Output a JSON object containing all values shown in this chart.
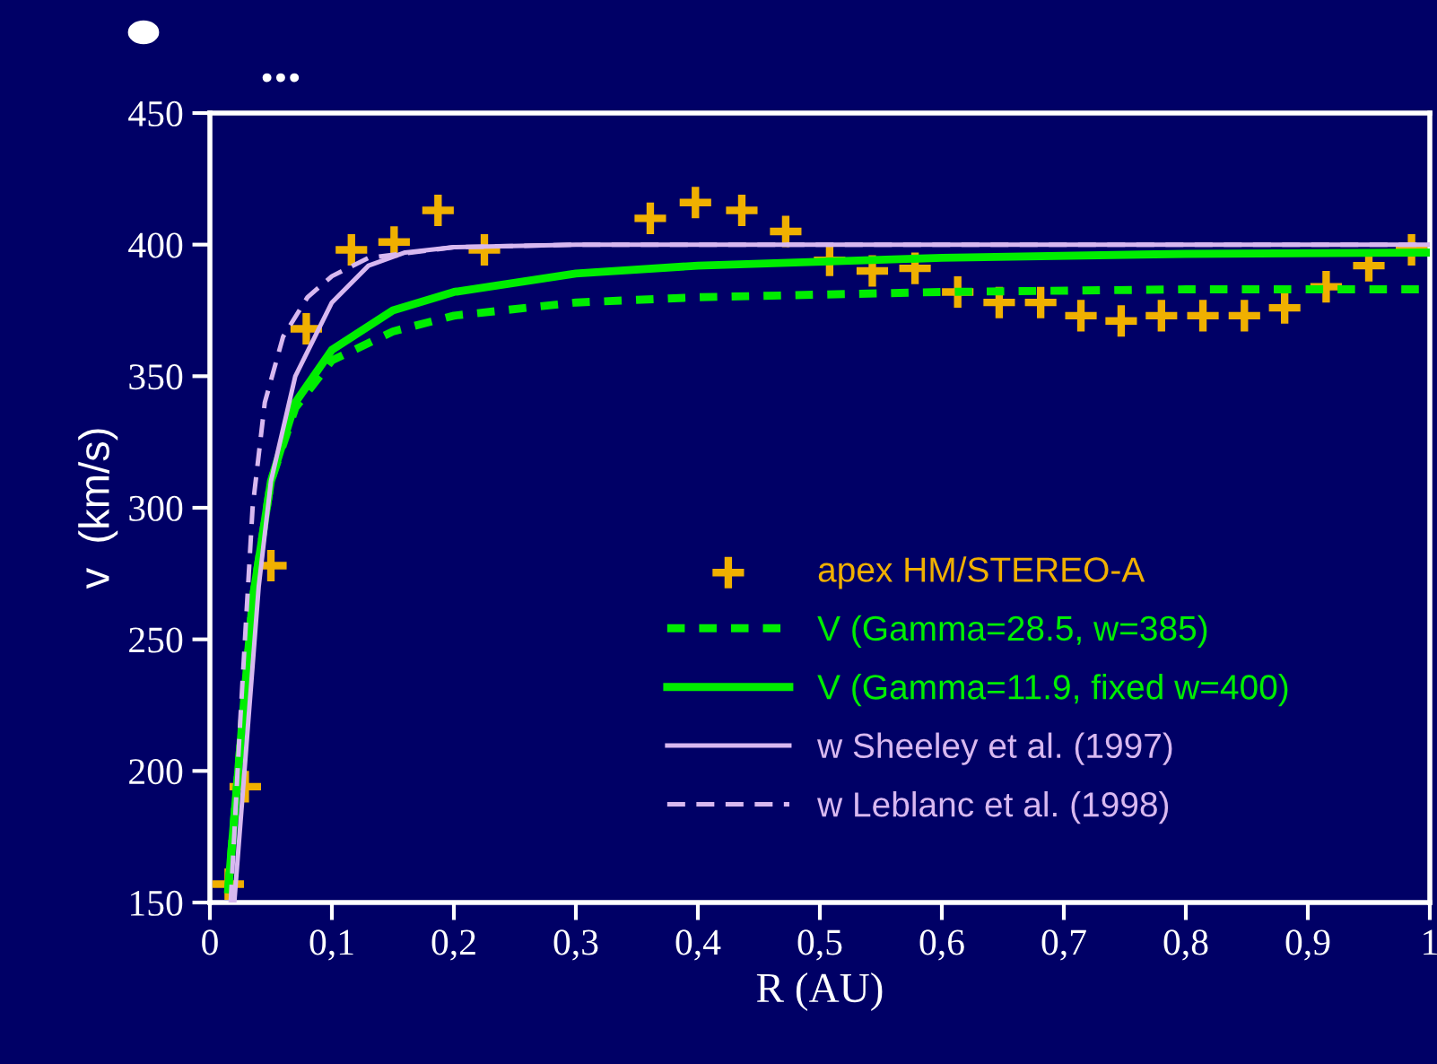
{
  "chart_data": {
    "type": "line",
    "title": "...",
    "xlabel": "R (AU)",
    "ylabel": "v  (km/s)",
    "xlim": [
      0,
      1
    ],
    "ylim": [
      150,
      450
    ],
    "xticks": [
      0,
      {
        "value": 0.1,
        "label": "0,1"
      },
      {
        "value": 0.2,
        "label": "0,2"
      },
      {
        "value": 0.3,
        "label": "0,3"
      },
      {
        "value": 0.4,
        "label": "0,4"
      },
      {
        "value": 0.5,
        "label": "0,5"
      },
      {
        "value": 0.6,
        "label": "0,6"
      },
      {
        "value": 0.7,
        "label": "0,7"
      },
      {
        "value": 0.8,
        "label": "0,8"
      },
      {
        "value": 0.9,
        "label": "0,9"
      },
      1
    ],
    "yticks": [
      150,
      200,
      250,
      300,
      350,
      400,
      450
    ],
    "grid": false,
    "legend": "bottom right",
    "series": [
      {
        "name": "apex HM/STEREO-A",
        "type": "scatter",
        "marker": "cross",
        "color": "#f0b000",
        "x": [
          0.015,
          0.029,
          0.05,
          0.079,
          0.116,
          0.151,
          0.187,
          0.225,
          0.361,
          0.398,
          0.436,
          0.472,
          0.508,
          0.543,
          0.578,
          0.613,
          0.647,
          0.681,
          0.714,
          0.747,
          0.78,
          0.814,
          0.848,
          0.881,
          0.915,
          0.95,
          0.985
        ],
        "values": [
          157,
          194,
          278,
          368,
          398,
          401,
          413,
          398,
          410,
          416,
          413,
          405,
          394,
          390,
          391,
          382,
          378,
          378,
          373,
          371,
          373,
          373,
          373,
          376,
          384,
          392,
          398
        ]
      },
      {
        "name": "V (Gamma=28.5, w=385)",
        "line_style": "dashed",
        "color": "#00ee00",
        "x": [
          0.015,
          0.025,
          0.035,
          0.05,
          0.07,
          0.1,
          0.15,
          0.2,
          0.3,
          0.4,
          0.6,
          0.8,
          1
        ],
        "values": [
          155,
          210,
          265,
          310,
          338,
          356,
          367,
          373,
          378,
          380,
          382,
          383,
          383
        ]
      },
      {
        "name": "V (Gamma=11.9, fixed w=400)",
        "line_style": "solid",
        "color": "#00ee00",
        "x": [
          0.015,
          0.025,
          0.035,
          0.05,
          0.07,
          0.1,
          0.15,
          0.2,
          0.3,
          0.4,
          0.6,
          0.8,
          1
        ],
        "values": [
          155,
          210,
          265,
          310,
          340,
          360,
          375,
          382,
          389,
          392,
          395,
          396.5,
          397
        ]
      },
      {
        "name": "w Sheeley et al. (1997)",
        "line_style": "solid",
        "color": "#d8b8f0",
        "x": [
          0.02,
          0.03,
          0.04,
          0.05,
          0.07,
          0.1,
          0.13,
          0.16,
          0.2,
          0.3,
          1
        ],
        "values": [
          150,
          210,
          270,
          310,
          350,
          378,
          392,
          397,
          399,
          400,
          400
        ]
      },
      {
        "name": "w Leblanc et al. (1998)",
        "line_style": "dashed",
        "color": "#d8b8f0",
        "x": [
          0.017,
          0.025,
          0.035,
          0.045,
          0.06,
          0.08,
          0.1,
          0.13,
          0.2,
          0.3,
          1
        ],
        "values": [
          150,
          220,
          300,
          340,
          365,
          380,
          388,
          395,
          399,
          400,
          400
        ]
      }
    ]
  }
}
